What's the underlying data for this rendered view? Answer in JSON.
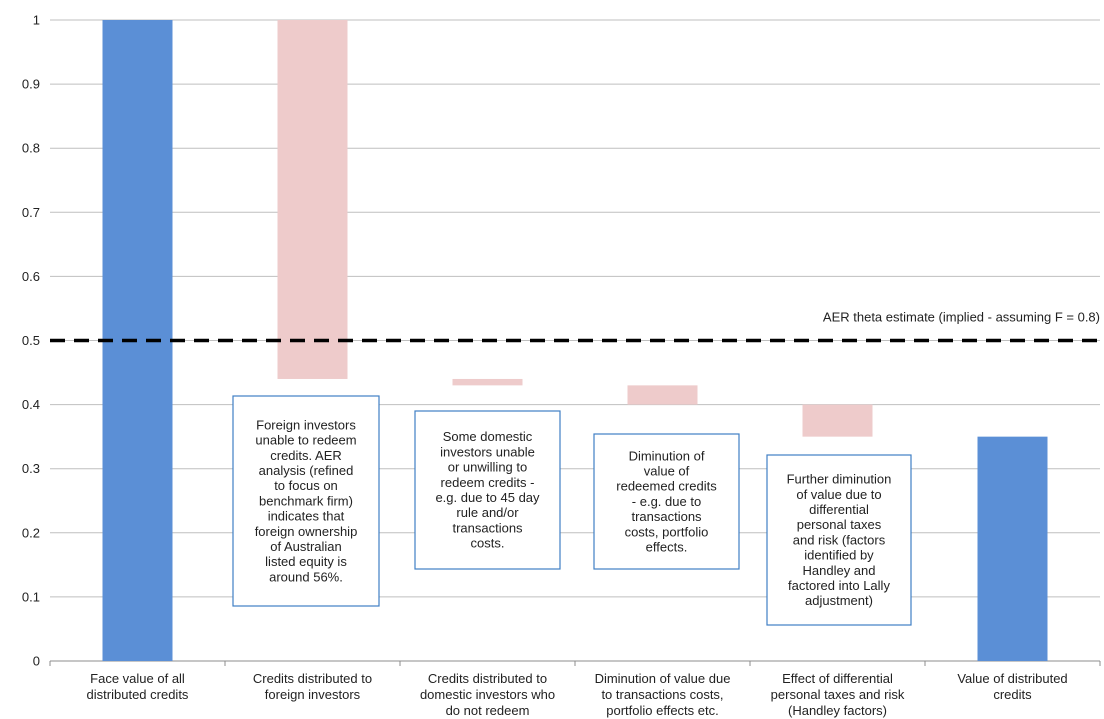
{
  "chart_data": {
    "type": "bar",
    "variant": "waterfall",
    "ylim": [
      0,
      1
    ],
    "yticks": [
      0,
      0.1,
      0.2,
      0.3,
      0.4,
      0.5,
      0.6,
      0.7,
      0.8,
      0.9,
      1
    ],
    "grid": true,
    "categories": [
      [
        "Face value of all",
        "distributed credits"
      ],
      [
        "Credits distributed to",
        "foreign investors"
      ],
      [
        "Credits distributed to",
        "domestic investors who",
        "do not redeem"
      ],
      [
        "Diminution of value due",
        "to transactions costs,",
        "portfolio effects etc."
      ],
      [
        "Effect of differential",
        "personal taxes and risk",
        "(Handley factors)"
      ],
      [
        "Value of distributed",
        "credits"
      ]
    ],
    "bars": [
      {
        "bottom": 0,
        "top": 1.0,
        "kind": "total"
      },
      {
        "bottom": 0.44,
        "top": 1.0,
        "kind": "decrease"
      },
      {
        "bottom": 0.43,
        "top": 0.44,
        "kind": "decrease"
      },
      {
        "bottom": 0.4,
        "top": 0.43,
        "kind": "decrease"
      },
      {
        "bottom": 0.35,
        "top": 0.4,
        "kind": "decrease"
      },
      {
        "bottom": 0,
        "top": 0.35,
        "kind": "total"
      }
    ],
    "reference_line": {
      "value": 0.5,
      "label": "AER theta estimate (implied - assuming F = 0.8)",
      "style": "dashed"
    },
    "annotations": [
      {
        "category_index": 1,
        "lines": [
          "Foreign investors",
          "unable to redeem",
          "credits. AER",
          "analysis (refined",
          "to focus on",
          "benchmark firm)",
          "indicates that",
          "foreign ownership",
          "of Australian",
          "listed equity is",
          "around 56%."
        ]
      },
      {
        "category_index": 2,
        "lines": [
          "Some domestic",
          "investors unable",
          "or unwilling to",
          "redeem credits -",
          "e.g. due to 45 day",
          "rule and/or",
          "transactions",
          "costs."
        ]
      },
      {
        "category_index": 3,
        "lines": [
          "Diminution of",
          "value of",
          "redeemed credits",
          "- e.g. due to",
          "transactions",
          "costs, portfolio",
          "effects."
        ]
      },
      {
        "category_index": 4,
        "lines": [
          "Further diminution",
          "of value due to",
          "differential",
          "personal taxes",
          "and risk (factors",
          "identified by",
          "Handley and",
          "factored into Lally",
          "adjustment)"
        ]
      }
    ],
    "colors": {
      "total": "#5b8fd6",
      "decrease": "#eecbcb",
      "grid": "#bfbfbf",
      "axis": "#8c8c8c",
      "annotation_border": "#3f7fc4",
      "reference_line": "#000000"
    }
  }
}
